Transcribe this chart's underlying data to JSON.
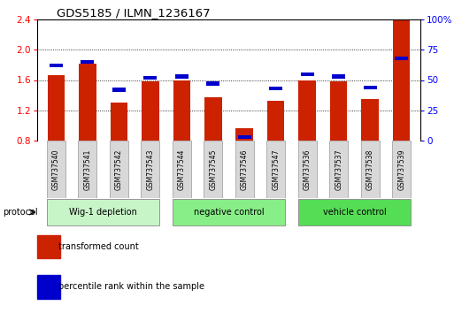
{
  "title": "GDS5185 / ILMN_1236167",
  "samples": [
    "GSM737540",
    "GSM737541",
    "GSM737542",
    "GSM737543",
    "GSM737544",
    "GSM737545",
    "GSM737546",
    "GSM737547",
    "GSM737536",
    "GSM737537",
    "GSM737538",
    "GSM737539"
  ],
  "transformed_count": [
    1.67,
    1.82,
    1.3,
    1.58,
    1.6,
    1.37,
    0.96,
    1.32,
    1.6,
    1.58,
    1.35,
    2.4
  ],
  "percentile_rank": [
    62,
    65,
    42,
    52,
    53,
    47,
    3,
    43,
    55,
    53,
    44,
    68
  ],
  "groups": [
    {
      "label": "Wig-1 depletion",
      "start": 0,
      "end": 3,
      "color": "#c8f5c8"
    },
    {
      "label": "negative control",
      "start": 4,
      "end": 7,
      "color": "#88ee88"
    },
    {
      "label": "vehicle control",
      "start": 8,
      "end": 11,
      "color": "#55dd55"
    }
  ],
  "ylim_left": [
    0.8,
    2.4
  ],
  "ylim_right": [
    0,
    100
  ],
  "yticks_left": [
    0.8,
    1.2,
    1.6,
    2.0,
    2.4
  ],
  "yticks_right": [
    0,
    25,
    50,
    75,
    100
  ],
  "bar_color": "#cc2200",
  "percentile_color": "#0000cc",
  "bar_width": 0.55,
  "baseline": 0.8,
  "legend_labels": [
    "transformed count",
    "percentile rank within the sample"
  ],
  "legend_colors": [
    "#cc2200",
    "#0000cc"
  ],
  "protocol_label": "protocol",
  "ytick_labels_right": [
    "0",
    "25",
    "50",
    "75",
    "100%"
  ],
  "grid_lines": [
    1.2,
    1.6,
    2.0
  ],
  "figsize": [
    5.13,
    3.54
  ],
  "dpi": 100
}
